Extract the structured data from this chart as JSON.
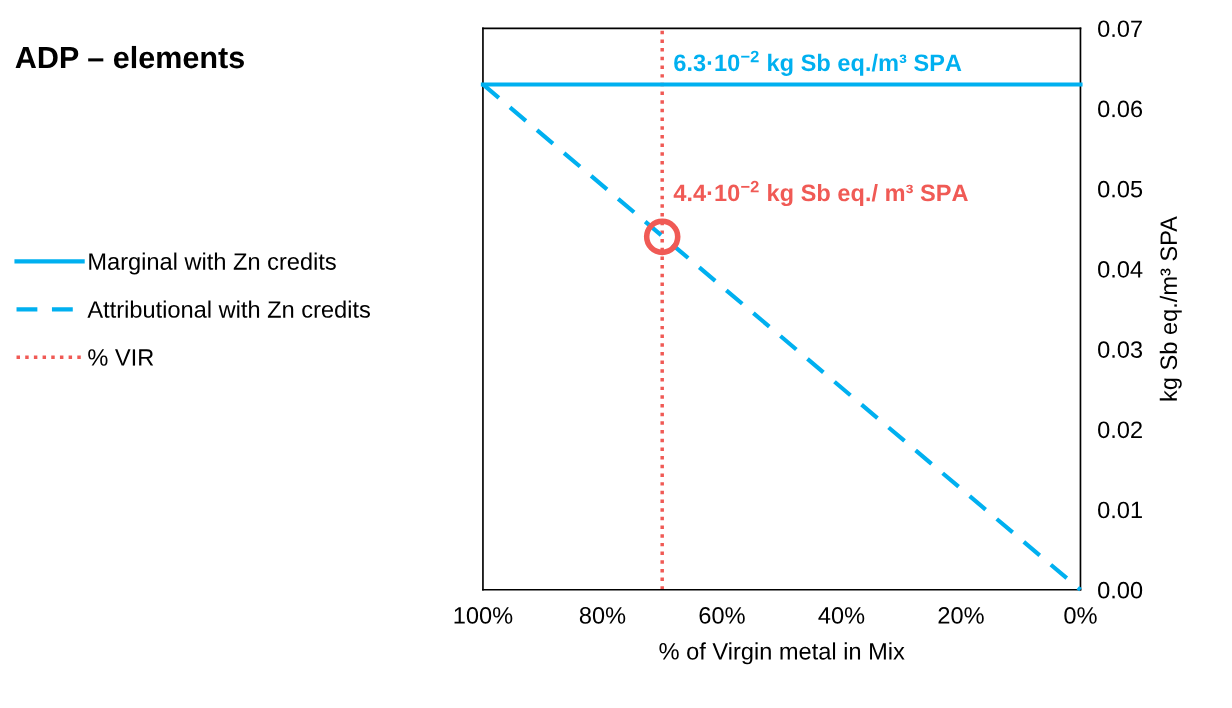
{
  "chart_data": {
    "type": "line",
    "title": "ADP – elements",
    "xlabel": "% of Virgin metal in Mix",
    "ylabel": "kg Sb eq./m³ SPA",
    "series": [
      {
        "name": "Marginal with Zn credits",
        "color": "#00b0f0",
        "line_style": "solid",
        "marker": "none",
        "x": [
          100,
          0
        ],
        "values": [
          0.063,
          0.063
        ]
      },
      {
        "name": "Attributional with Zn credits",
        "color": "#00b0f0",
        "line_style": "dashed",
        "marker": "none",
        "x": [
          100,
          0
        ],
        "values": [
          0.063,
          0.0
        ]
      },
      {
        "name": "% VIR",
        "color": "#f05a55",
        "line_style": "dotted",
        "marker": "none",
        "x": [
          70,
          70
        ],
        "values": [
          0,
          0.07
        ]
      },
      {
        "type": "scatter",
        "color": "#f05a55",
        "marker": "circle",
        "x": [
          70
        ],
        "values": [
          0.044
        ]
      }
    ],
    "annotations": [
      {
        "text": "6.3·10$^{−2}$ kg Sb eq./m³ SPA",
        "x": 70,
        "y": 0.063
      },
      {
        "text": "4.4·10$^{−2}$ kg Sb eq./ m³ SPA",
        "x": 70,
        "y": 0.044
      }
    ],
    "xlim": [
      100,
      0
    ],
    "xticks": [
      {
        "value": 100,
        "label": "100%"
      },
      {
        "value": 80,
        "label": "80%"
      },
      {
        "value": 60,
        "label": "60%"
      },
      {
        "value": 40,
        "label": "40%"
      },
      {
        "value": 20,
        "label": "20%"
      },
      {
        "value": 0,
        "label": "0%"
      }
    ],
    "ylim": [
      0,
      0.07
    ],
    "yticks": [
      {
        "value": 0,
        "label": "0.00"
      },
      {
        "value": 0.01,
        "label": "0.01"
      },
      {
        "value": 0.02,
        "label": "0.02"
      },
      {
        "value": 0.03,
        "label": "0.03"
      },
      {
        "value": 0.04,
        "label": "0.04"
      },
      {
        "value": 0.05,
        "label": "0.05"
      },
      {
        "value": 0.06,
        "label": "0.06"
      },
      {
        "value": 0.07,
        "label": "0.07"
      }
    ],
    "legend": "left"
  }
}
